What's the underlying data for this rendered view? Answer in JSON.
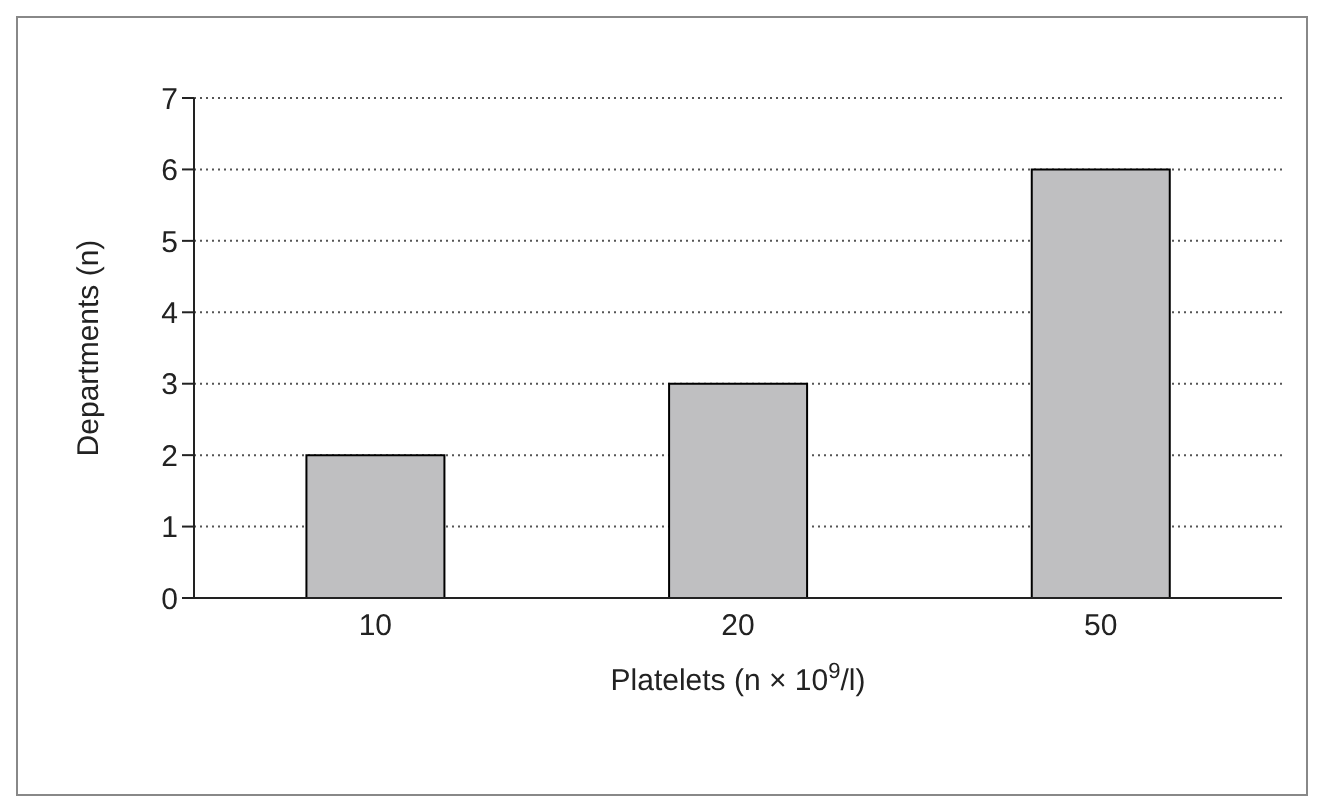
{
  "chart_data": {
    "type": "bar",
    "categories": [
      "10",
      "20",
      "50"
    ],
    "values": [
      2,
      3,
      6
    ],
    "color": "#bfbfc1",
    "xlabel": "Platelets (n × 10$^{9}$/l)",
    "ylabel": "Departments (n)",
    "ylim": [
      0,
      7
    ],
    "yticks": [
      0,
      1,
      2,
      3,
      4,
      5,
      6,
      7
    ],
    "grid": "y"
  }
}
